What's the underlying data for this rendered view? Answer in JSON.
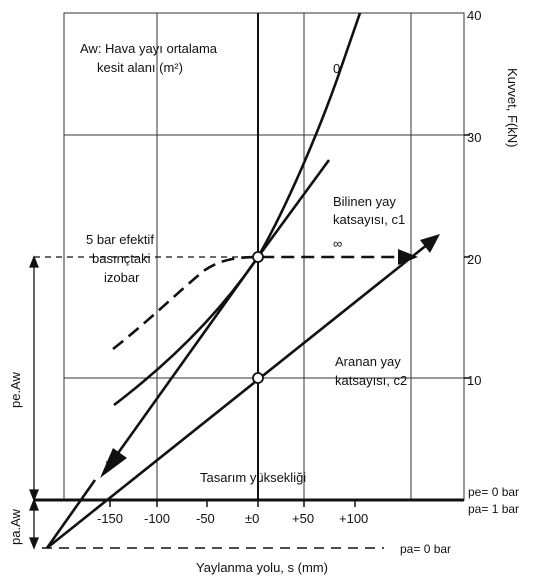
{
  "axes": {
    "y_label": "Kuvvet, F(kN)",
    "x_label": "Yaylanma yolu, s (mm)",
    "y_ticks": [
      "40",
      "30",
      "20",
      "10"
    ],
    "x_ticks": [
      "-150",
      "-100",
      "-50",
      "±0",
      "+50",
      "+100"
    ]
  },
  "annotations": {
    "area_label_line1": "Aw: Hava yayı ortalama",
    "area_label_line2": "kesit alanı (m²)",
    "zero_curve": "0",
    "known_spring_line1": "Bilinen yay",
    "known_spring_line2": "katsayısı, c1",
    "infinity": "∞",
    "isobar_line1": "5 bar efektif",
    "isobar_line2": "basınçtaki",
    "isobar_line3": "izobar",
    "sought_spring_line1": "Aranan  yay",
    "sought_spring_line2": "katsayısı, c2",
    "design_height": "Tasarım yüksekliği",
    "pe_aw": "pe.Aw",
    "pa_aw": "pa.Aw",
    "pe_zero": "pe= 0 bar",
    "pa_one": "pa= 1 bar",
    "pa_zero": "pa= 0 bar"
  }
}
